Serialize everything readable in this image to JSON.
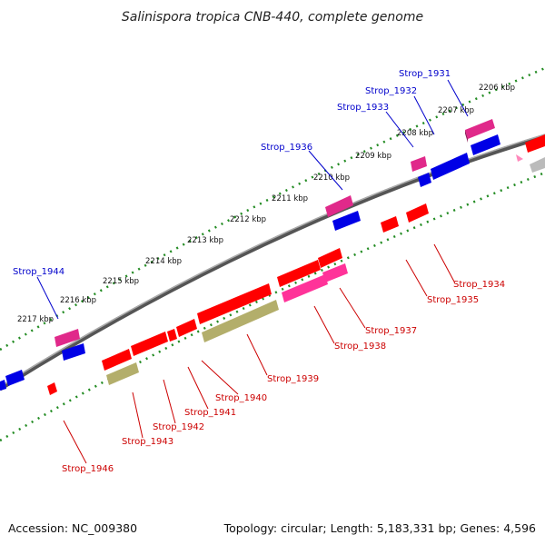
{
  "title": "Salinispora tropica CNB-440, complete genome",
  "footer": {
    "accession": "Accession: NC_009380",
    "topology": "Topology: circular; Length: 5,183,331 bp; Genes: 4,596"
  },
  "ticks": [
    "2206 kbp",
    "2207 kbp",
    "2208 kbp",
    "2209 kbp",
    "2210 kbp",
    "2211 kbp",
    "2212 kbp",
    "2213 kbp",
    "2214 kbp",
    "2215 kbp",
    "2216 kbp",
    "2217 kbp"
  ],
  "labels_forward": [
    "Strop_1931",
    "Strop_1932",
    "Strop_1933",
    "Strop_1936",
    "Strop_1944"
  ],
  "labels_reverse": [
    "Strop_1934",
    "Strop_1935",
    "Strop_1937",
    "Strop_1938",
    "Strop_1939",
    "Strop_1940",
    "Strop_1941",
    "Strop_1942",
    "Strop_1943",
    "Strop_1946"
  ],
  "colors": {
    "cds": "#ff0000",
    "gene": "#ff3399",
    "forward_feature": "#0000ff",
    "misc_feature": "#b3ae6b",
    "backbone": "#777777",
    "tick": "#228b22",
    "forward_label": "#0000cc",
    "reverse_label": "#cc0000"
  }
}
